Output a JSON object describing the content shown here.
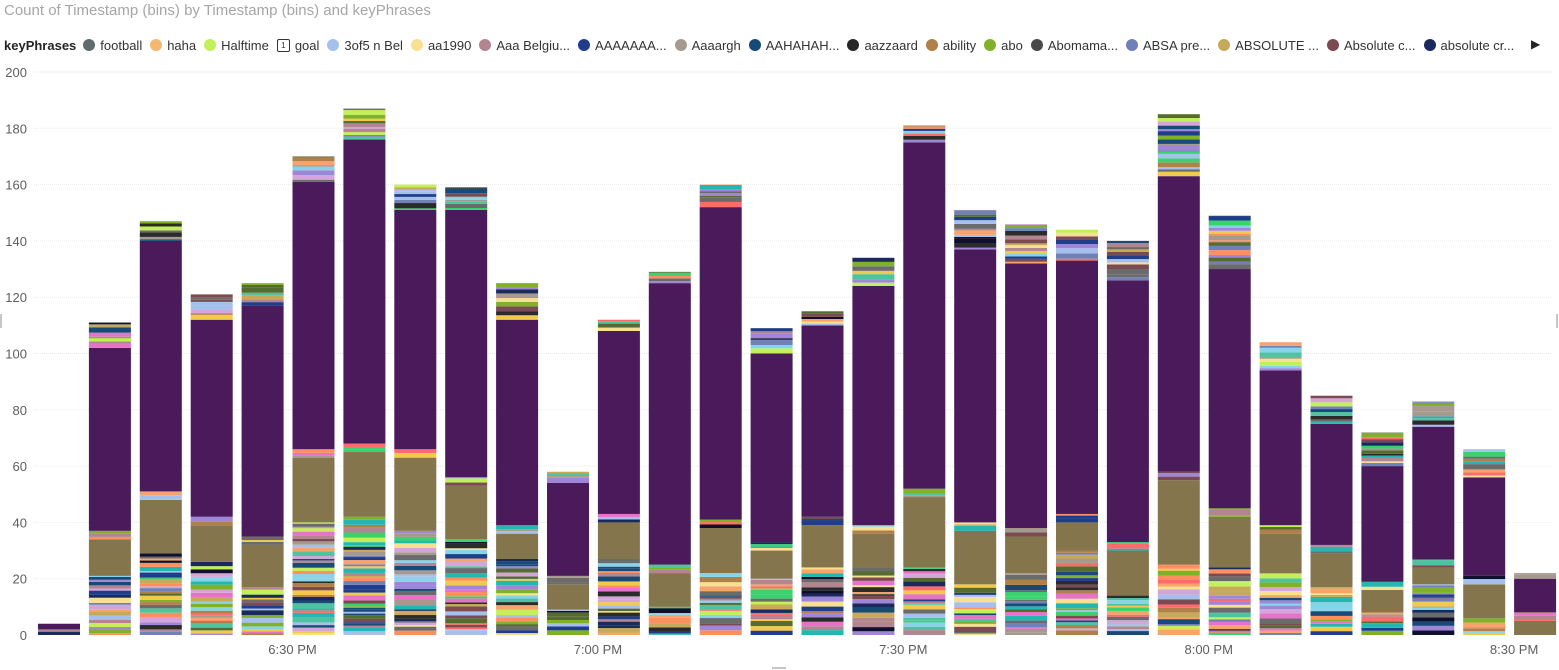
{
  "chart_data": {
    "type": "bar",
    "stacked": true,
    "title": "Count of Timestamp (bins) by Timestamp (bins) and keyPhrases",
    "legend": {
      "title": "keyPhrases",
      "position": "top-left",
      "items": [
        {
          "label": "football",
          "color": "#5f6b6d"
        },
        {
          "label": "haha",
          "color": "#f5b870"
        },
        {
          "label": "Halftime",
          "color": "#c2f05a"
        },
        {
          "label": "goal",
          "color": "#8a8a8a",
          "marker": "1"
        },
        {
          "label": "3of5 n Bel",
          "color": "#a6c0ee"
        },
        {
          "label": "aa1990",
          "color": "#f7e08f"
        },
        {
          "label": "Aaa Belgiu...",
          "color": "#b28590"
        },
        {
          "label": "AAAAAAA...",
          "color": "#1f3d8a"
        },
        {
          "label": "Aaaargh",
          "color": "#a69a8e"
        },
        {
          "label": "AAHAHAH...",
          "color": "#184a78"
        },
        {
          "label": "aazzaard",
          "color": "#262626"
        },
        {
          "label": "ability",
          "color": "#b17f4a"
        },
        {
          "label": "abo",
          "color": "#7fb22a"
        },
        {
          "label": "Abomama...",
          "color": "#4a4a4a"
        },
        {
          "label": "ABSA pre...",
          "color": "#7080b8"
        },
        {
          "label": "ABSOLUTE ...",
          "color": "#c6a95a"
        },
        {
          "label": "Absolute c...",
          "color": "#7b4a52"
        },
        {
          "label": "absolute cr...",
          "color": "#1a2a5c"
        }
      ],
      "next_arrow": "▶"
    },
    "y_axis": {
      "ticks": [
        0,
        20,
        40,
        60,
        80,
        100,
        120,
        140,
        160,
        180,
        200
      ],
      "ylim": [
        0,
        200
      ]
    },
    "x_axis": {
      "ticks": [
        "6:30 PM",
        "7:00 PM",
        "7:30 PM",
        "8:00 PM",
        "8:30 PM"
      ],
      "tick_positions": [
        5.5,
        11.5,
        17.5,
        23.5,
        29.5
      ]
    },
    "series_colors": {
      "base": "#85754d",
      "main": "#4a1a5a",
      "highlight": "#9b2335"
    },
    "bars": [
      {
        "bin": 1,
        "total": 4,
        "base": 0,
        "main": 2,
        "main_start": 2
      },
      {
        "bin": 2,
        "total": 111,
        "base": 13,
        "main": 65,
        "main_start": 37
      },
      {
        "bin": 3,
        "total": 147,
        "base": 19,
        "main": 89,
        "main_start": 51
      },
      {
        "bin": 4,
        "total": 121,
        "base": 13,
        "main": 70,
        "main_start": 42
      },
      {
        "bin": 5,
        "total": 125,
        "base": 15,
        "main": 82,
        "main_start": 35
      },
      {
        "bin": 6,
        "total": 170,
        "base": 23,
        "main": 95,
        "main_start": 66
      },
      {
        "bin": 7,
        "total": 187,
        "base": 23,
        "main": 108,
        "main_start": 68
      },
      {
        "bin": 8,
        "total": 160,
        "base": 26,
        "main": 85,
        "main_start": 66
      },
      {
        "bin": 9,
        "total": 159,
        "base": 19,
        "main": 95,
        "main_start": 56
      },
      {
        "bin": 10,
        "total": 125,
        "base": 9,
        "main": 73,
        "main_start": 39
      },
      {
        "bin": 11,
        "total": 58,
        "base": 9,
        "main": 33,
        "main_start": 21
      },
      {
        "bin": 12,
        "total": 112,
        "base": 13,
        "main": 65,
        "main_start": 43
      },
      {
        "bin": 13,
        "total": 129,
        "base": 12,
        "main": 100,
        "main_start": 25
      },
      {
        "bin": 14,
        "total": 160,
        "base": 16,
        "main": 111,
        "main_start": 41
      },
      {
        "bin": 15,
        "total": 109,
        "base": 10,
        "main": 67,
        "main_start": 33
      },
      {
        "bin": 16,
        "total": 115,
        "base": 15,
        "main": 68,
        "main_start": 42
      },
      {
        "bin": 17,
        "total": 134,
        "base": 12,
        "main": 85,
        "main_start": 39
      },
      {
        "bin": 18,
        "total": 181,
        "base": 25,
        "main": 123,
        "main_start": 52
      },
      {
        "bin": 19,
        "total": 151,
        "base": 19,
        "main": 97,
        "main_start": 40
      },
      {
        "bin": 20,
        "total": 146,
        "base": 13,
        "main": 94,
        "main_start": 38
      },
      {
        "bin": 21,
        "total": 144,
        "base": 10,
        "main": 90,
        "main_start": 43
      },
      {
        "bin": 22,
        "total": 140,
        "base": 16,
        "main": 93,
        "main_start": 33
      },
      {
        "bin": 23,
        "total": 185,
        "base": 30,
        "main": 105,
        "main_start": 58
      },
      {
        "bin": 24,
        "total": 149,
        "base": 18,
        "main": 85,
        "main_start": 45
      },
      {
        "bin": 25,
        "total": 104,
        "base": 14,
        "main": 55,
        "main_start": 39
      },
      {
        "bin": 26,
        "total": 85,
        "base": 12,
        "main": 43,
        "main_start": 32
      },
      {
        "bin": 27,
        "total": 72,
        "base": 8,
        "main": 41,
        "main_start": 19
      },
      {
        "bin": 28,
        "total": 83,
        "base": 6,
        "main": 47,
        "main_start": 27
      },
      {
        "bin": 29,
        "total": 66,
        "base": 12,
        "main": 35,
        "main_start": 21
      },
      {
        "bin": 30,
        "total": 22,
        "base": 6,
        "main": 12,
        "main_start": 8
      }
    ],
    "minor_palette": [
      "#6b6b6b",
      "#f5a46b",
      "#c2f05a",
      "#2b2b2b",
      "#a6c0ee",
      "#f7e08f",
      "#b28590",
      "#1f3d8a",
      "#a69a8e",
      "#184a78",
      "#b17f4a",
      "#7fb22a",
      "#7080b8",
      "#c6a95a",
      "#7b4a52",
      "#1a2a5c",
      "#ff6b6b",
      "#4fc3a1",
      "#e573c7",
      "#26b6b0",
      "#f2c94c",
      "#9f86d8",
      "#3bd16f",
      "#0f0f2e",
      "#ff8f5e",
      "#87d3e8",
      "#556b2f",
      "#d4a5d9"
    ]
  }
}
